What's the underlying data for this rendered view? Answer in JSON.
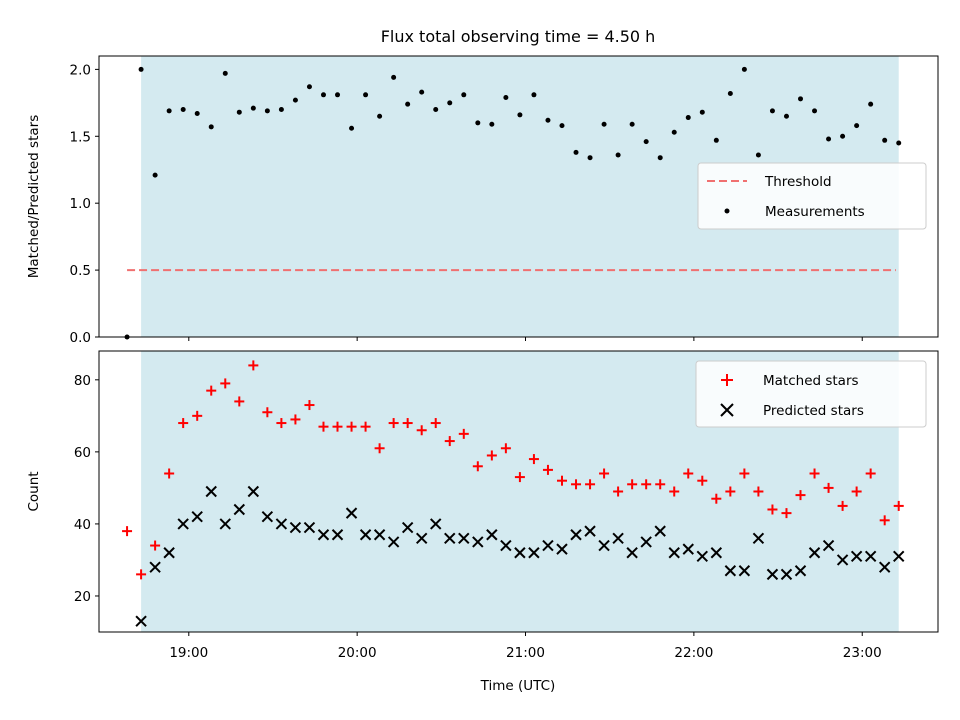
{
  "title": "Flux total observing time = 4.50 h",
  "chart_data": [
    {
      "type": "scatter",
      "ylabel": "Matched/Predicted stars",
      "xlabel": "",
      "xlim": [
        "18:28",
        "23:27"
      ],
      "ylim": [
        0,
        2.1
      ],
      "yticks": [
        0.0,
        0.5,
        1.0,
        1.5,
        2.0
      ],
      "ytick_labels": [
        "0.0",
        "0.5",
        "1.0",
        "1.5",
        "2.0"
      ],
      "shaded_span": [
        "18:43",
        "23:13"
      ],
      "shade_color": "#d4eaf0",
      "legend_position": "center-right",
      "threshold": {
        "name": "Threshold",
        "value": 0.5,
        "x": [
          "18:38",
          "23:12"
        ],
        "color": "#f07070"
      },
      "series": [
        {
          "name": "Measurements",
          "color": "#000000",
          "x": [
            "18:38",
            "18:43",
            "18:48",
            "18:53",
            "18:58",
            "19:03",
            "19:08",
            "19:13",
            "19:18",
            "19:23",
            "19:28",
            "19:33",
            "19:38",
            "19:43",
            "19:48",
            "19:53",
            "19:58",
            "20:03",
            "20:08",
            "20:13",
            "20:18",
            "20:23",
            "20:28",
            "20:33",
            "20:38",
            "20:43",
            "20:48",
            "20:53",
            "20:58",
            "21:03",
            "21:08",
            "21:13",
            "21:18",
            "21:23",
            "21:28",
            "21:33",
            "21:38",
            "21:43",
            "21:48",
            "21:53",
            "21:58",
            "22:03",
            "22:08",
            "22:13",
            "22:18",
            "22:23",
            "22:28",
            "22:33",
            "22:38",
            "22:43",
            "22:48",
            "22:53",
            "22:58",
            "23:03",
            "23:08",
            "23:13"
          ],
          "y": [
            0.0,
            2.0,
            1.21,
            1.69,
            1.7,
            1.67,
            1.57,
            1.97,
            1.68,
            1.71,
            1.69,
            1.7,
            1.77,
            1.87,
            1.81,
            1.81,
            1.56,
            1.81,
            1.65,
            1.94,
            1.74,
            1.83,
            1.7,
            1.75,
            1.81,
            1.6,
            1.59,
            1.79,
            1.66,
            1.81,
            1.62,
            1.58,
            1.38,
            1.34,
            1.59,
            1.36,
            1.59,
            1.46,
            1.34,
            1.53,
            1.64,
            1.68,
            1.47,
            1.82,
            2.0,
            1.36,
            1.69,
            1.65,
            1.78,
            1.69,
            1.48,
            1.5,
            1.58,
            1.74,
            1.47,
            1.45
          ]
        }
      ]
    },
    {
      "type": "scatter",
      "ylabel": "Count",
      "xlabel": "Time (UTC)",
      "xlim": [
        "18:28",
        "23:27"
      ],
      "ylim": [
        10,
        88
      ],
      "yticks": [
        20,
        40,
        60,
        80
      ],
      "xticks": [
        "19:00",
        "20:00",
        "21:00",
        "22:00",
        "23:00"
      ],
      "shaded_span": [
        "18:43",
        "23:13"
      ],
      "shade_color": "#d4eaf0",
      "legend_position": "top-right",
      "series": [
        {
          "name": "Matched stars",
          "marker": "+",
          "color": "#ff0000",
          "x": [
            "18:38",
            "18:43",
            "18:48",
            "18:53",
            "18:58",
            "19:03",
            "19:08",
            "19:13",
            "19:18",
            "19:23",
            "19:28",
            "19:33",
            "19:38",
            "19:43",
            "19:48",
            "19:53",
            "19:58",
            "20:03",
            "20:08",
            "20:13",
            "20:18",
            "20:23",
            "20:28",
            "20:33",
            "20:38",
            "20:43",
            "20:48",
            "20:53",
            "20:58",
            "21:03",
            "21:08",
            "21:13",
            "21:18",
            "21:23",
            "21:28",
            "21:33",
            "21:38",
            "21:43",
            "21:48",
            "21:53",
            "21:58",
            "22:03",
            "22:08",
            "22:13",
            "22:18",
            "22:23",
            "22:28",
            "22:33",
            "22:38",
            "22:43",
            "22:48",
            "22:53",
            "22:58",
            "23:03",
            "23:08",
            "23:13"
          ],
          "y": [
            38,
            26,
            34,
            54,
            68,
            70,
            77,
            79,
            74,
            84,
            71,
            68,
            69,
            73,
            67,
            67,
            67,
            67,
            61,
            68,
            68,
            66,
            68,
            63,
            65,
            56,
            59,
            61,
            53,
            58,
            55,
            52,
            51,
            51,
            54,
            49,
            51,
            51,
            51,
            49,
            54,
            52,
            47,
            49,
            54,
            49,
            44,
            43,
            48,
            54,
            50,
            45,
            49,
            54,
            41,
            45
          ]
        },
        {
          "name": "Predicted stars",
          "marker": "x",
          "color": "#000000",
          "x": [
            "18:43",
            "18:48",
            "18:53",
            "18:58",
            "19:03",
            "19:08",
            "19:13",
            "19:18",
            "19:23",
            "19:28",
            "19:33",
            "19:38",
            "19:43",
            "19:48",
            "19:53",
            "19:58",
            "20:03",
            "20:08",
            "20:13",
            "20:18",
            "20:23",
            "20:28",
            "20:33",
            "20:38",
            "20:43",
            "20:48",
            "20:53",
            "20:58",
            "21:03",
            "21:08",
            "21:13",
            "21:18",
            "21:23",
            "21:28",
            "21:33",
            "21:38",
            "21:43",
            "21:48",
            "21:53",
            "21:58",
            "22:03",
            "22:08",
            "22:13",
            "22:18",
            "22:23",
            "22:28",
            "22:33",
            "22:38",
            "22:43",
            "22:48",
            "22:53",
            "22:58",
            "23:03",
            "23:08",
            "23:13"
          ],
          "y": [
            13,
            28,
            32,
            40,
            42,
            49,
            40,
            44,
            49,
            42,
            40,
            39,
            39,
            37,
            37,
            43,
            37,
            37,
            35,
            39,
            36,
            40,
            36,
            36,
            35,
            37,
            34,
            32,
            32,
            34,
            33,
            37,
            38,
            34,
            36,
            32,
            35,
            38,
            32,
            33,
            31,
            32,
            27,
            27,
            36,
            26,
            26,
            27,
            32,
            34,
            30,
            31,
            31,
            28,
            31
          ]
        }
      ]
    }
  ]
}
